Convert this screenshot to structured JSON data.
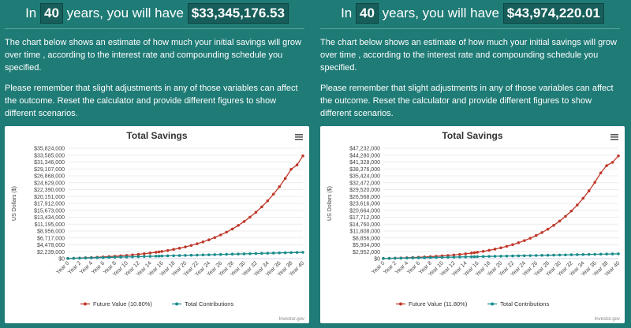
{
  "panels": [
    {
      "headline": {
        "prefix": "In",
        "years": "40",
        "middle": "years, you will have",
        "amount": "$33,345,176.53"
      },
      "paragraph1": "The chart below shows an estimate of how much your initial savings will grow over time , according to the interest rate and compounding schedule you specified.",
      "paragraph2": "Please remember that slight adjustments in any of those variables can affect the outcome. Reset the calculator and provide different figures to show different scenarios.",
      "chart_data": {
        "type": "line",
        "title": "Total Savings",
        "ylabel": "US Dollars ($)",
        "xlabel": "",
        "yticks": [
          "$35,824,000",
          "$33,585,000",
          "$31,346,000",
          "$29,107,000",
          "$26,868,000",
          "$24,629,000",
          "$22,390,000",
          "$20,151,000",
          "$17,912,000",
          "$15,673,000",
          "$13,434,000",
          "$11,195,000",
          "$8,956,000",
          "$6,717,000",
          "$4,478,000",
          "$2,239,000",
          "$0"
        ],
        "ylim": [
          0,
          35824000
        ],
        "xticks": [
          "Year 0",
          "Year 2",
          "Year 4",
          "Year 6",
          "Year 8",
          "Year 10",
          "Year 12",
          "Year 14",
          "Year 16",
          "Year 18",
          "Year 20",
          "Year 22",
          "Year 24",
          "Year 26",
          "Year 28",
          "Year 30",
          "Year 32",
          "Year 34",
          "Year 36",
          "Year 38",
          "Year 40"
        ],
        "x": [
          0,
          1,
          2,
          3,
          4,
          5,
          6,
          7,
          8,
          9,
          10,
          11,
          12,
          13,
          14,
          15,
          15.5,
          16,
          17,
          18,
          19,
          20,
          21,
          22,
          23,
          24,
          25,
          26,
          27,
          28,
          29,
          30,
          31,
          32,
          33,
          34,
          35,
          36,
          37,
          38,
          39,
          40
        ],
        "series": [
          {
            "name": "Future Value (10.80%)",
            "color": "#c0392b",
            "values": [
              50000,
              120000,
              190000,
              270000,
              350000,
              440000,
              540000,
              650000,
              770000,
              900000,
              1050000,
              1210000,
              1390000,
              1590000,
              1810000,
              2060000,
              2180000,
              2330000,
              2640000,
              2980000,
              3370000,
              3800000,
              4280000,
              4820000,
              5420000,
              6090000,
              6840000,
              7670000,
              8590000,
              9620000,
              10770000,
              12040000,
              13460000,
              15040000,
              16790000,
              18750000,
              20920000,
              23330000,
              26010000,
              28980000,
              30400000,
              33345177
            ]
          },
          {
            "name": "Total Contributions",
            "color": "#1a8c8c",
            "values": [
              50000,
              100000,
              150000,
              200000,
              250000,
              300000,
              350000,
              400000,
              450000,
              500000,
              550000,
              600000,
              650000,
              700000,
              750000,
              800000,
              825000,
              850000,
              900000,
              950000,
              1000000,
              1050000,
              1100000,
              1150000,
              1200000,
              1250000,
              1300000,
              1350000,
              1400000,
              1450000,
              1500000,
              1550000,
              1600000,
              1650000,
              1700000,
              1750000,
              1800000,
              1850000,
              1900000,
              1950000,
              2000000,
              2050000
            ]
          }
        ],
        "legend": "bottom",
        "grid": true,
        "credit": "Investor.gov"
      }
    },
    {
      "headline": {
        "prefix": "In",
        "years": "40",
        "middle": "years, you will have",
        "amount": "$43,974,220.01"
      },
      "paragraph1": "The chart below shows an estimate of how much your initial savings will grow over time , according to the interest rate and compounding schedule you specified.",
      "paragraph2": "Please remember that slight adjustments in any of those variables can affect the outcome. Reset the calculator and provide different figures to show different scenarios.",
      "chart_data": {
        "type": "line",
        "title": "Total Savings",
        "ylabel": "US Dollars ($)",
        "xlabel": "",
        "yticks": [
          "$47,232,000",
          "$44,280,000",
          "$41,328,000",
          "$38,376,000",
          "$35,424,000",
          "$32,472,000",
          "$29,520,000",
          "$26,568,000",
          "$23,616,000",
          "$20,664,000",
          "$17,712,000",
          "$14,760,000",
          "$11,808,000",
          "$8,856,000",
          "$5,904,000",
          "$2,952,000",
          "$0"
        ],
        "ylim": [
          0,
          47232000
        ],
        "xticks": [
          "Year 0",
          "Year 2",
          "Year 4",
          "Year 6",
          "Year 8",
          "Year 10",
          "Year 12",
          "Year 14",
          "Year 16",
          "Year 18",
          "Year 20",
          "Year 22",
          "Year 24",
          "Year 26",
          "Year 28",
          "Year 30",
          "Year 32",
          "Year 34",
          "Year 36",
          "Year 38",
          "Year 40"
        ],
        "x": [
          0,
          1,
          2,
          3,
          4,
          5,
          6,
          7,
          8,
          9,
          10,
          11,
          12,
          13,
          14,
          15,
          15.5,
          16,
          17,
          18,
          19,
          20,
          21,
          22,
          23,
          24,
          25,
          26,
          27,
          28,
          29,
          30,
          31,
          32,
          33,
          34,
          35,
          36,
          37,
          38,
          39,
          40
        ],
        "series": [
          {
            "name": "Future Value (11.80%)",
            "color": "#c0392b",
            "values": [
              50000,
              120000,
              200000,
              280000,
              370000,
              470000,
              580000,
              700000,
              840000,
              990000,
              1160000,
              1350000,
              1560000,
              1800000,
              2070000,
              2370000,
              2540000,
              2720000,
              3110000,
              3560000,
              4060000,
              4630000,
              5270000,
              5990000,
              6800000,
              7710000,
              8730000,
              9880000,
              11170000,
              12610000,
              14230000,
              16050000,
              18080000,
              20370000,
              22930000,
              25810000,
              29030000,
              32640000,
              36680000,
              39800000,
              41200000,
              43974220
            ]
          },
          {
            "name": "Total Contributions",
            "color": "#1a8c8c",
            "values": [
              50000,
              100000,
              150000,
              200000,
              250000,
              300000,
              350000,
              400000,
              450000,
              500000,
              550000,
              600000,
              650000,
              700000,
              750000,
              800000,
              825000,
              850000,
              900000,
              950000,
              1000000,
              1050000,
              1100000,
              1150000,
              1200000,
              1250000,
              1300000,
              1350000,
              1400000,
              1450000,
              1500000,
              1550000,
              1600000,
              1650000,
              1700000,
              1750000,
              1800000,
              1850000,
              1900000,
              1950000,
              2000000,
              2050000
            ]
          }
        ],
        "legend": "bottom",
        "grid": true,
        "credit": "Investor.gov"
      }
    }
  ],
  "icons": {
    "menu": "hamburger-menu-icon"
  }
}
